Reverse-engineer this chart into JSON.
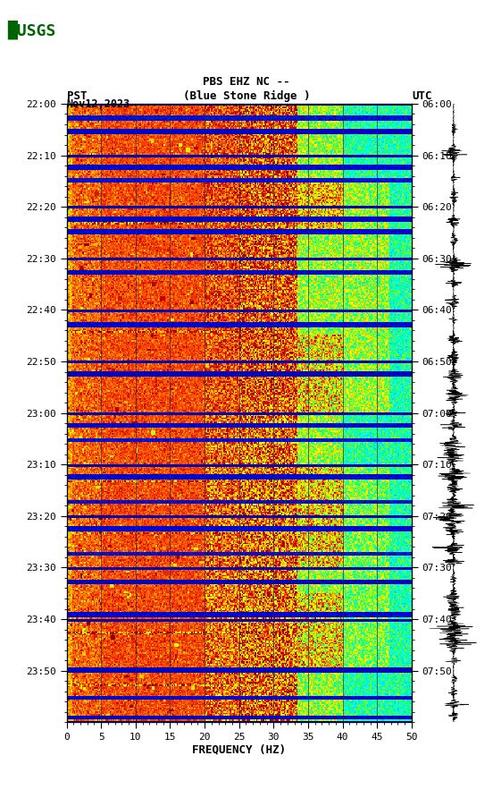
{
  "title_line1": "PBS EHZ NC --",
  "title_line2": "(Blue Stone Ridge )",
  "date": "Nov12,2023",
  "timezone_left": "PST",
  "timezone_right": "UTC",
  "left_times": [
    "22:00",
    "22:10",
    "22:20",
    "22:30",
    "22:40",
    "22:50",
    "23:00",
    "23:10",
    "23:20",
    "23:30",
    "23:40",
    "23:50"
  ],
  "right_times": [
    "06:00",
    "06:10",
    "06:20",
    "06:30",
    "06:40",
    "06:50",
    "07:00",
    "07:10",
    "07:20",
    "07:30",
    "07:40",
    "07:50"
  ],
  "freq_min": 0,
  "freq_max": 50,
  "freq_ticks": [
    0,
    5,
    10,
    15,
    20,
    25,
    30,
    35,
    40,
    45,
    50
  ],
  "xlabel": "FREQUENCY (HZ)",
  "usgs_logo_color": "#006400",
  "grid_color": "#4444AA",
  "n_time": 480,
  "n_freq": 300
}
